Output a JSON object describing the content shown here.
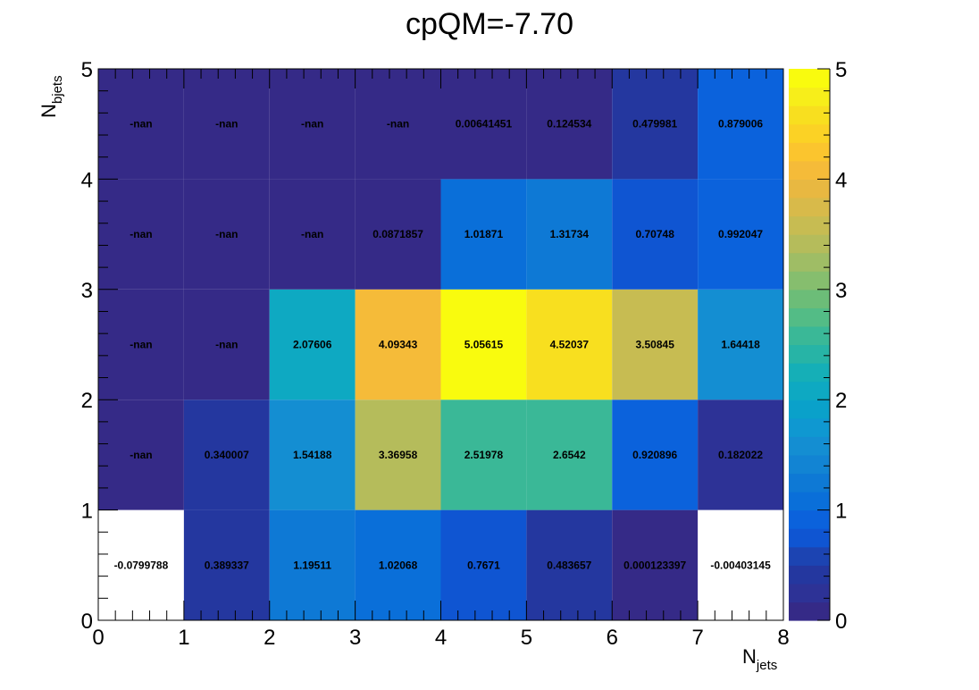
{
  "chart_data": {
    "type": "heatmap",
    "title": "cpQM=-7.70",
    "xlabel": {
      "main": "N",
      "sub": "jets"
    },
    "ylabel": {
      "main": "N",
      "sub": "bjets"
    },
    "xlim": [
      0,
      8
    ],
    "ylim": [
      0,
      5
    ],
    "x_ticks": [
      "0",
      "1",
      "2",
      "3",
      "4",
      "5",
      "6",
      "7",
      "8"
    ],
    "y_ticks": [
      "0",
      "1",
      "2",
      "3",
      "4",
      "5"
    ],
    "z_range": [
      0,
      5
    ],
    "z_ticks": [
      "0",
      "1",
      "2",
      "3",
      "4",
      "5"
    ],
    "colormap": "parula",
    "grid": false,
    "colorbar": "right",
    "rows": [
      {
        "y": 0,
        "labels": [
          "-0.0799788",
          "0.389337",
          "1.19511",
          "1.02068",
          "0.7671",
          "0.483657",
          "0.000123397",
          "-0.00403145"
        ],
        "values": [
          -0.0799788,
          0.389337,
          1.19511,
          1.02068,
          0.7671,
          0.483657,
          0.000123397,
          -0.00403145
        ]
      },
      {
        "y": 1,
        "labels": [
          "-nan",
          "0.340007",
          "1.54188",
          "3.36958",
          "2.51978",
          "2.6542",
          "0.920896",
          "0.182022"
        ],
        "values": [
          null,
          0.340007,
          1.54188,
          3.36958,
          2.51978,
          2.6542,
          0.920896,
          0.182022
        ]
      },
      {
        "y": 2,
        "labels": [
          "-nan",
          "-nan",
          "2.07606",
          "4.09343",
          "5.05615",
          "4.52037",
          "3.50845",
          "1.64418"
        ],
        "values": [
          null,
          null,
          2.07606,
          4.09343,
          5.05615,
          4.52037,
          3.50845,
          1.64418
        ]
      },
      {
        "y": 3,
        "labels": [
          "-nan",
          "-nan",
          "-nan",
          "0.0871857",
          "1.01871",
          "1.31734",
          "0.70748",
          "0.992047"
        ],
        "values": [
          null,
          null,
          null,
          0.0871857,
          1.01871,
          1.31734,
          0.70748,
          0.992047
        ]
      },
      {
        "y": 4,
        "labels": [
          "-nan",
          "-nan",
          "-nan",
          "-nan",
          "0.00641451",
          "0.124534",
          "0.479981",
          "0.879006"
        ],
        "values": [
          null,
          null,
          null,
          null,
          0.00641451,
          0.124534,
          0.479981,
          0.879006
        ]
      }
    ]
  }
}
